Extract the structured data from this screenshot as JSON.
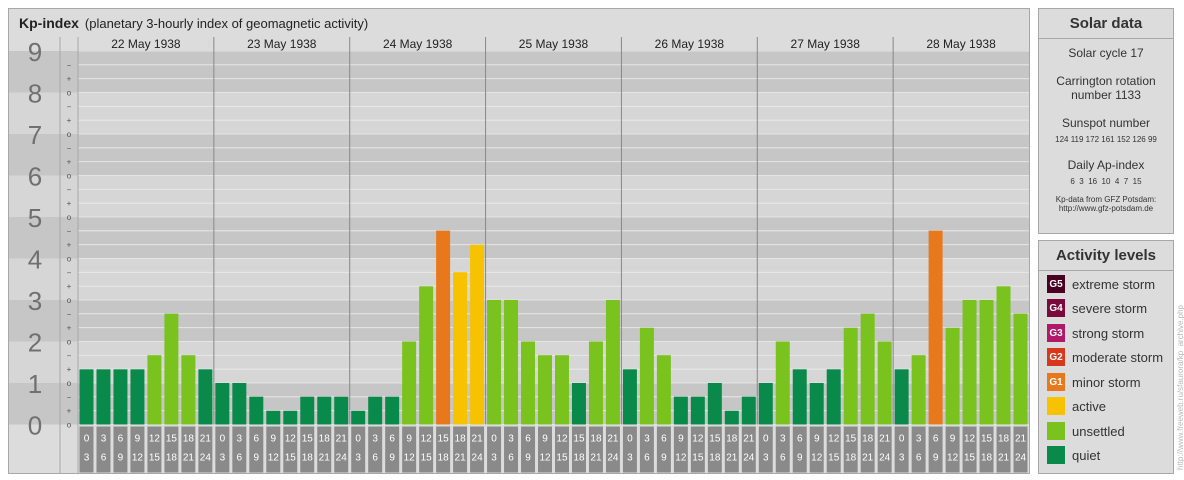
{
  "header": {
    "title": "Kp-index",
    "subtitle": "(planetary 3-hourly index of geomagnetic activity)"
  },
  "chart_data": {
    "type": "bar",
    "ylim": [
      0,
      9
    ],
    "y_ticks": [
      "0",
      "1",
      "2",
      "3",
      "4",
      "5",
      "6",
      "7",
      "8",
      "9"
    ],
    "minor_tick_labels": [
      "+",
      "o",
      "−"
    ],
    "days": [
      "22 May 1938",
      "23 May 1938",
      "24 May 1938",
      "25 May 1938",
      "26 May 1938",
      "27 May 1938",
      "28 May 1938"
    ],
    "interval_starts": [
      "0",
      "3",
      "6",
      "9",
      "12",
      "15",
      "18",
      "21"
    ],
    "interval_ends": [
      "3",
      "6",
      "9",
      "12",
      "15",
      "18",
      "21",
      "24"
    ],
    "values": [
      1.33,
      1.33,
      1.33,
      1.33,
      1.67,
      2.67,
      1.67,
      1.33,
      1.0,
      1.0,
      0.67,
      0.33,
      0.33,
      0.67,
      0.67,
      0.67,
      0.33,
      0.67,
      0.67,
      2.0,
      3.33,
      4.67,
      3.67,
      4.33,
      3.0,
      3.0,
      2.0,
      1.67,
      1.67,
      1.0,
      2.0,
      3.0,
      1.33,
      2.33,
      1.67,
      0.67,
      0.67,
      1.0,
      0.33,
      0.67,
      1.0,
      2.0,
      1.33,
      1.0,
      1.33,
      2.33,
      2.67,
      2.0,
      1.33,
      1.67,
      4.67,
      2.33,
      3.0,
      3.0,
      3.33,
      2.67
    ]
  },
  "solar": {
    "title": "Solar data",
    "cycle": "Solar cycle 17",
    "carrington_label": "Carrington rotation",
    "carrington_number": "number 1133",
    "sunspot_label": "Sunspot number",
    "sunspot_values": "124 119 172 161 152 126 99",
    "ap_label": "Daily Ap-index",
    "ap_values": "6  3  16  10  4  7  15",
    "source_line": "Kp-data from GFZ Potsdam:",
    "source_url": "http://www.gfz-potsdam.de"
  },
  "activity": {
    "title": "Activity levels",
    "levels": [
      {
        "code": "G5",
        "label": "extreme storm",
        "color": "#4a0020"
      },
      {
        "code": "G4",
        "label": "severe storm",
        "color": "#7a0a3c"
      },
      {
        "code": "G3",
        "label": "strong storm",
        "color": "#b0186a"
      },
      {
        "code": "G2",
        "label": "moderate storm",
        "color": "#d7381c"
      },
      {
        "code": "G1",
        "label": "minor storm",
        "color": "#e8781c"
      },
      {
        "code": "",
        "label": "active",
        "color": "#f7c200"
      },
      {
        "code": "",
        "label": "unsettled",
        "color": "#7ac21e"
      },
      {
        "code": "",
        "label": "quiet",
        "color": "#0a8a4a"
      }
    ]
  },
  "watermark": "http://www.freeweb.ru/sfaurora/kp_archive.php"
}
